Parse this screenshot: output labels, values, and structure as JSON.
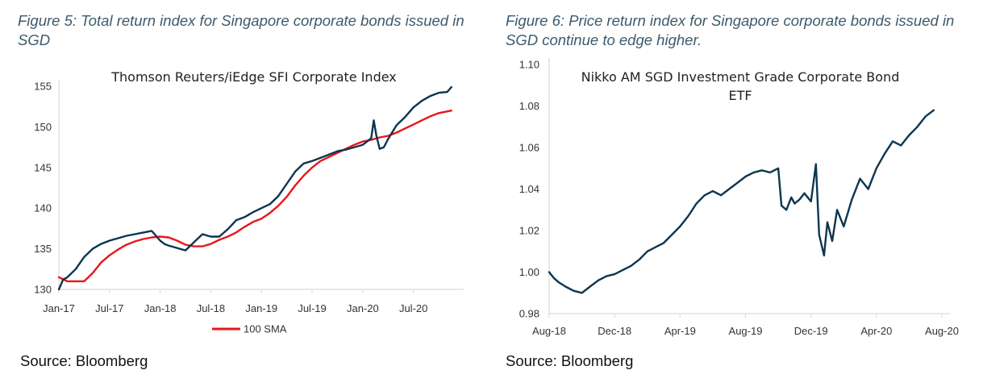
{
  "figure5": {
    "caption": "Figure 5: Total return index for Singapore corporate bonds issued in SGD",
    "source": "Source: Bloomberg"
  },
  "figure6": {
    "caption": "Figure 6: Price return index for Singapore corporate bonds issued in SGD continue to edge higher.",
    "source": "Source: Bloomberg"
  },
  "chart_data": [
    {
      "type": "line",
      "title": "Thomson Reuters/iEdge SFI Corporate Index",
      "xlabel": "",
      "ylabel": "",
      "x_ticks": [
        "Jan-17",
        "Jul-17",
        "Jan-18",
        "Jul-18",
        "Jan-19",
        "Jul-19",
        "Jan-20",
        "Jul-20"
      ],
      "y_ticks": [
        130,
        135,
        140,
        145,
        150,
        155
      ],
      "xlim": [
        0,
        47
      ],
      "ylim": [
        130,
        155
      ],
      "grid": false,
      "legend_position": "bottom",
      "x_unit": "months since Jan-17",
      "series": [
        {
          "name": "",
          "color": "#0d3550",
          "x": [
            0,
            0.5,
            1,
            2,
            3,
            4,
            5,
            6,
            7,
            8,
            9,
            10,
            11,
            12,
            12.5,
            13,
            14,
            15,
            16,
            17,
            18,
            19,
            20,
            21,
            22,
            23,
            24,
            25,
            26,
            27,
            28,
            29,
            30,
            31,
            32,
            33,
            34,
            35,
            36,
            37,
            37.3,
            37.6,
            38,
            38.5,
            39,
            40,
            41,
            42,
            43,
            44,
            45,
            46,
            46.5
          ],
          "y": [
            130.0,
            131.2,
            131.5,
            132.5,
            134.0,
            135.0,
            135.6,
            136.0,
            136.3,
            136.6,
            136.8,
            137.0,
            137.2,
            136.0,
            135.6,
            135.4,
            135.1,
            134.8,
            135.8,
            136.8,
            136.5,
            136.5,
            137.4,
            138.5,
            138.9,
            139.5,
            140.0,
            140.5,
            141.5,
            143.0,
            144.5,
            145.5,
            145.8,
            146.2,
            146.6,
            147.0,
            147.2,
            147.5,
            147.8,
            148.6,
            150.8,
            149.0,
            147.3,
            147.5,
            148.5,
            150.2,
            151.2,
            152.4,
            153.2,
            153.8,
            154.2,
            154.3,
            154.9
          ]
        },
        {
          "name": "100 SMA",
          "color": "#e8161b",
          "x": [
            0,
            1,
            2,
            3,
            4,
            5,
            6,
            7,
            8,
            9,
            10,
            11,
            12,
            13,
            14,
            15,
            16,
            17,
            18,
            19,
            20,
            21,
            22,
            23,
            24,
            25,
            26,
            27,
            28,
            29,
            30,
            31,
            32,
            33,
            34,
            35,
            36,
            37,
            38,
            39,
            40,
            41,
            42,
            43,
            44,
            45,
            46,
            46.5
          ],
          "y": [
            131.5,
            131.0,
            131.0,
            131.0,
            132.0,
            133.3,
            134.2,
            134.9,
            135.5,
            135.9,
            136.2,
            136.4,
            136.5,
            136.4,
            136.0,
            135.5,
            135.3,
            135.3,
            135.6,
            136.1,
            136.5,
            137.0,
            137.7,
            138.3,
            138.7,
            139.4,
            140.3,
            141.4,
            142.8,
            144.0,
            145.0,
            145.8,
            146.3,
            146.8,
            147.3,
            147.8,
            148.2,
            148.4,
            148.7,
            148.9,
            149.3,
            149.8,
            150.3,
            150.8,
            151.3,
            151.7,
            151.9,
            152.0
          ]
        }
      ]
    },
    {
      "type": "line",
      "title": "Nikko AM SGD Investment Grade Corporate Bond ETF",
      "xlabel": "",
      "ylabel": "",
      "x_ticks": [
        "Aug-18",
        "Dec-18",
        "Apr-19",
        "Aug-19",
        "Dec-19",
        "Apr-20",
        "Aug-20"
      ],
      "y_ticks": [
        "0.98",
        "1.00",
        "1.02",
        "1.04",
        "1.06",
        "1.08",
        "1.10"
      ],
      "xlim": [
        0,
        24
      ],
      "ylim": [
        0.98,
        1.1
      ],
      "grid": false,
      "x_unit": "months since Aug-18",
      "series": [
        {
          "name": "",
          "color": "#0d3550",
          "x": [
            0,
            0.3,
            0.6,
            1,
            1.5,
            2,
            2.5,
            3,
            3.5,
            4,
            4.5,
            5,
            5.5,
            6,
            6.5,
            7,
            7.5,
            8,
            8.5,
            9,
            9.5,
            10,
            10.5,
            11,
            11.5,
            12,
            12.5,
            13,
            13.5,
            14,
            14.2,
            14.5,
            14.8,
            15,
            15.3,
            15.6,
            16,
            16.3,
            16.5,
            16.8,
            17,
            17.3,
            17.6,
            18,
            18.5,
            19,
            19.5,
            20,
            20.5,
            21,
            21.5,
            22,
            22.5,
            23,
            23.5
          ],
          "y": [
            1.0,
            0.997,
            0.995,
            0.993,
            0.991,
            0.99,
            0.993,
            0.996,
            0.998,
            0.999,
            1.001,
            1.003,
            1.006,
            1.01,
            1.012,
            1.014,
            1.018,
            1.022,
            1.027,
            1.033,
            1.037,
            1.039,
            1.037,
            1.04,
            1.043,
            1.046,
            1.048,
            1.049,
            1.048,
            1.05,
            1.032,
            1.03,
            1.036,
            1.033,
            1.035,
            1.038,
            1.034,
            1.052,
            1.018,
            1.008,
            1.024,
            1.015,
            1.03,
            1.022,
            1.035,
            1.045,
            1.04,
            1.05,
            1.057,
            1.063,
            1.061,
            1.066,
            1.07,
            1.075,
            1.078
          ]
        }
      ]
    }
  ]
}
